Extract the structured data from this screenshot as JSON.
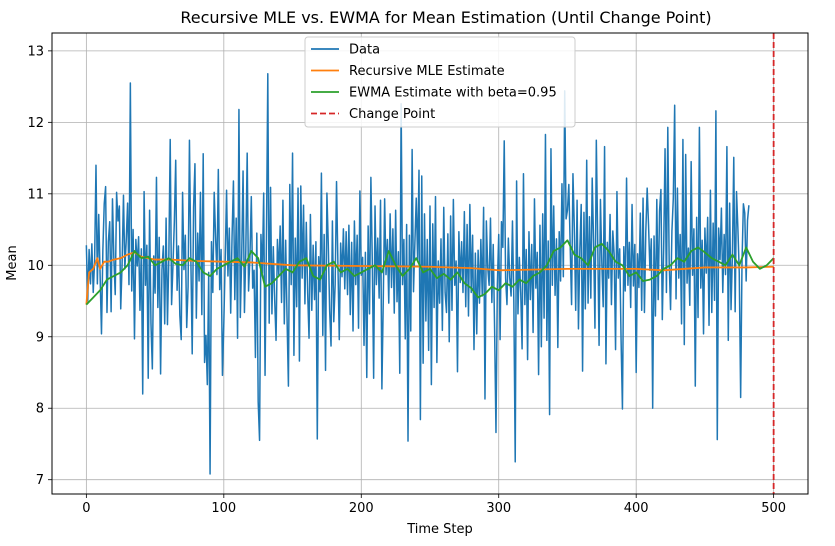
{
  "chart_data": {
    "type": "line",
    "title": "Recursive MLE vs. EWMA for Mean Estimation (Until Change Point)",
    "xlabel": "Time Step",
    "ylabel": "Mean",
    "xlim": [
      -25,
      525
    ],
    "ylim": [
      6.8,
      13.25
    ],
    "xticks": [
      0,
      100,
      200,
      300,
      400,
      500
    ],
    "yticks": [
      7,
      8,
      9,
      10,
      11,
      12,
      13
    ],
    "grid": true,
    "legend_position": "top-center",
    "colors": {
      "data": "#1f77b4",
      "mle": "#ff7f0e",
      "ewma": "#2ca02c",
      "change_point": "#d62728"
    },
    "legend": [
      {
        "key": "data",
        "label": "Data",
        "style": "solid"
      },
      {
        "key": "mle",
        "label": "Recursive MLE Estimate",
        "style": "solid"
      },
      {
        "key": "ewma",
        "label": "EWMA Estimate with beta=0.95",
        "style": "solid"
      },
      {
        "key": "change_point",
        "label": "Change Point",
        "style": "dashed"
      }
    ],
    "change_point_x": 500,
    "series": [
      {
        "key": "data",
        "name": "Data",
        "x_start": 0,
        "values": [
          10.28,
          9.5,
          10.22,
          9.74,
          10.3,
          9.62,
          10.06,
          11.4,
          9.74,
          10.71,
          9.86,
          9.04,
          10.21,
          10.86,
          11.1,
          9.34,
          10.33,
          10.61,
          9.35,
          10.93,
          10.1,
          9.59,
          11.02,
          10.62,
          10.83,
          9.39,
          10.02,
          10.98,
          9.95,
          10.35,
          10.87,
          9.73,
          12.55,
          9.64,
          10.5,
          8.97,
          10.36,
          9.99,
          10.4,
          9.37,
          10.23,
          8.2,
          11.03,
          9.72,
          10.28,
          8.42,
          10.77,
          9.19,
          8.55,
          10.13,
          9.61,
          11.23,
          9.41,
          10.39,
          8.48,
          9.94,
          10.27,
          9.18,
          10.66,
          9.17,
          10.12,
          11.76,
          9.45,
          10.0,
          10.6,
          11.47,
          9.65,
          10.27,
          9.3,
          8.96,
          11.02,
          9.94,
          10.42,
          9.13,
          9.7,
          11.75,
          10.12,
          8.76,
          10.81,
          11.42,
          9.26,
          10.45,
          9.78,
          11.02,
          9.31,
          11.56,
          8.64,
          9.02,
          8.33,
          9.9,
          7.08,
          10.33,
          9.62,
          11.02,
          10.4,
          9.87,
          11.34,
          9.66,
          10.22,
          8.46,
          9.19,
          10.07,
          11.05,
          9.85,
          10.52,
          9.33,
          10.41,
          11.18,
          9.52,
          10.66,
          8.98,
          12.18,
          9.27,
          10.12,
          11.32,
          9.34,
          10.21,
          11.57,
          9.64,
          10.11,
          10.96,
          9.68,
          9.93,
          8.71,
          10.45,
          8.09,
          7.55,
          10.43,
          9.89,
          11.01,
          8.46,
          10.35,
          12.68,
          9.19,
          11.09,
          9.32,
          10.26,
          9.52,
          8.95,
          10.36,
          9.87,
          10.55,
          9.48,
          10.91,
          9.18,
          10.35,
          9.26,
          8.31,
          11.13,
          9.73,
          11.57,
          8.74,
          10.38,
          9.42,
          11.08,
          8.66,
          11.11,
          9.82,
          10.84,
          9.46,
          10.6,
          9.61,
          8.98,
          10.71,
          9.37,
          10.28,
          9.52,
          10.33,
          7.57,
          10.12,
          9.63,
          11.29,
          9.02,
          10.43,
          8.53,
          11.01,
          10.29,
          9.36,
          8.87,
          10.62,
          9.21,
          9.73,
          11.17,
          10.02,
          8.96,
          10.31,
          9.84,
          10.51,
          9.67,
          10.47,
          9.59,
          10.56,
          9.31,
          10.32,
          9.08,
          10.62,
          9.73,
          10.42,
          9.12,
          11.04,
          9.86,
          10.11,
          8.88,
          10.18,
          8.43,
          10.55,
          9.32,
          11.23,
          10.08,
          8.42,
          10.83,
          9.73,
          10.38,
          9.54,
          10.91,
          8.27,
          9.51,
          10.93,
          9.87,
          10.36,
          9.47,
          10.72,
          9.69,
          10.51,
          9.33,
          10.77,
          9.49,
          10.19,
          8.49,
          12.26,
          9.73,
          10.36,
          8.97,
          10.57,
          7.54,
          10.42,
          9.08,
          11.62,
          9.63,
          10.31,
          10.94,
          10.07,
          11.33,
          7.84,
          11.25,
          8.63,
          10.72,
          9.22,
          10.36,
          8.81,
          10.83,
          8.33,
          10.58,
          9.41,
          10.96,
          8.64,
          10.06,
          9.47,
          10.37,
          9.09,
          10.81,
          9.62,
          9.34,
          10.44,
          8.93,
          10.69,
          9.37,
          10.92,
          9.72,
          10.06,
          8.51,
          10.47,
          9.76,
          10.33,
          9.62,
          10.75,
          9.42,
          10.57,
          9.29,
          10.85,
          9.62,
          10.42,
          8.82,
          10.17,
          9.04,
          10.21,
          9.47,
          10.36,
          9.57,
          10.81,
          8.13,
          10.62,
          9.97,
          9.72,
          10.66,
          9.48,
          10.29,
          9.11,
          7.66,
          9.73,
          10.43,
          8.96,
          10.61,
          10.25,
          11.74,
          9.82,
          9.45,
          10.38,
          9.83,
          9.57,
          10.62,
          9.48,
          7.25,
          11.18,
          9.32,
          10.11,
          9.62,
          8.83,
          11.28,
          9.45,
          10.22,
          8.68,
          10.47,
          9.52,
          10.29,
          9.06,
          10.93,
          9.68,
          10.18,
          8.47,
          10.56,
          8.86,
          10.72,
          9.26,
          11.83,
          8.95,
          10.34,
          7.91,
          11.63,
          9.72,
          10.83,
          9.58,
          10.37,
          8.85,
          10.47,
          9.78,
          11.14,
          9.84,
          12.44,
          10.65,
          10.77,
          11.13,
          10.26,
          9.45,
          11.28,
          10.52,
          9.37,
          10.91,
          9.11,
          10.21,
          10.85,
          8.52,
          10.74,
          9.39,
          11.47,
          9.47,
          10.68,
          9.54,
          11.22,
          10.33,
          9.12,
          11.75,
          10.36,
          8.88,
          10.92,
          10.04,
          9.42,
          11.66,
          8.62,
          10.32,
          9.82,
          10.71,
          9.45,
          10.48,
          10.14,
          8.82,
          11.03,
          9.82,
          10.23,
          8.97,
          7.99,
          10.26,
          9.64,
          11.22,
          9.72,
          10.32,
          9.41,
          10.85,
          9.71,
          10.29,
          8.5,
          10.16,
          9.69,
          10.73,
          9.37,
          10.94,
          9.34,
          10.47,
          11.08,
          10.56,
          9.93,
          10.37,
          8.0,
          10.41,
          9.29,
          10.92,
          9.52,
          10.76,
          11.06,
          9.24,
          10.24,
          11.63,
          9.62,
          11.93,
          10.05,
          9.38,
          10.48,
          10.93,
          12.24,
          9.53,
          11.08,
          9.82,
          10.43,
          9.18,
          11.76,
          8.89,
          11.55,
          9.75,
          10.24,
          9.44,
          11.45,
          9.86,
          10.51,
          8.31,
          10.67,
          9.27,
          11.93,
          9.68,
          10.35,
          9.04,
          10.52,
          9.89,
          10.67,
          9.16,
          11.05,
          9.34,
          10.59,
          9.51,
          12.16,
          7.56,
          10.52,
          10.08,
          10.8,
          9.62,
          10.43,
          9.87,
          11.66,
          8.95,
          10.87,
          9.38,
          10.14,
          11.51,
          9.35,
          11.03,
          10.51,
          9.89,
          8.15,
          10.06,
          10.86,
          10.73,
          9.78,
          10.63,
          10.84
        ]
      },
      {
        "key": "mle",
        "name": "Recursive MLE Estimate",
        "x": [
          0,
          2,
          5,
          8,
          10,
          13,
          16,
          20,
          25,
          30,
          35,
          40,
          50,
          60,
          70,
          80,
          100,
          120,
          150,
          200,
          250,
          280,
          300,
          350,
          400,
          420,
          450,
          480,
          500
        ],
        "values": [
          9.45,
          9.9,
          9.95,
          10.1,
          9.95,
          10.05,
          10.05,
          10.08,
          10.1,
          10.15,
          10.18,
          10.12,
          10.08,
          10.08,
          10.07,
          10.06,
          10.05,
          10.04,
          10.0,
          9.99,
          9.98,
          9.96,
          9.93,
          9.95,
          9.95,
          9.93,
          9.97,
          9.97,
          9.98
        ]
      },
      {
        "key": "ewma",
        "name": "EWMA Estimate with beta=0.95",
        "x": [
          0,
          5,
          10,
          15,
          20,
          25,
          30,
          35,
          40,
          45,
          50,
          55,
          60,
          65,
          70,
          75,
          80,
          85,
          90,
          95,
          100,
          105,
          110,
          115,
          120,
          125,
          130,
          135,
          140,
          145,
          150,
          155,
          160,
          165,
          170,
          175,
          180,
          185,
          190,
          195,
          200,
          205,
          210,
          215,
          220,
          225,
          230,
          235,
          240,
          245,
          250,
          255,
          260,
          265,
          270,
          275,
          280,
          285,
          290,
          295,
          300,
          305,
          310,
          315,
          320,
          325,
          330,
          335,
          340,
          345,
          350,
          355,
          360,
          365,
          370,
          375,
          380,
          385,
          390,
          395,
          400,
          405,
          410,
          415,
          420,
          425,
          430,
          435,
          440,
          445,
          450,
          455,
          460,
          465,
          470,
          475,
          480,
          485,
          490,
          495,
          500
        ],
        "values": [
          9.45,
          9.55,
          9.65,
          9.8,
          9.85,
          9.9,
          10.0,
          10.2,
          10.1,
          10.12,
          10.0,
          10.05,
          10.1,
          10.02,
          10.0,
          10.1,
          10.05,
          9.9,
          9.85,
          9.95,
          10.0,
          10.05,
          10.1,
          9.98,
          10.2,
          10.1,
          9.7,
          9.75,
          9.85,
          9.95,
          9.9,
          10.05,
          10.1,
          9.85,
          9.8,
          10.0,
          10.05,
          9.9,
          9.95,
          9.85,
          9.9,
          9.95,
          10.0,
          9.9,
          10.2,
          10.0,
          9.85,
          9.95,
          10.1,
          9.9,
          9.95,
          9.82,
          9.88,
          9.8,
          9.9,
          9.75,
          9.68,
          9.55,
          9.6,
          9.7,
          9.65,
          9.75,
          9.7,
          9.8,
          9.75,
          9.85,
          9.9,
          10.0,
          10.2,
          10.25,
          10.35,
          10.15,
          10.1,
          10.0,
          10.25,
          10.3,
          10.2,
          10.05,
          10.0,
          9.85,
          9.9,
          9.78,
          9.8,
          9.85,
          9.95,
          10.0,
          10.1,
          10.05,
          10.2,
          10.25,
          10.18,
          10.1,
          10.05,
          10.0,
          10.15,
          10.0,
          10.25,
          10.05,
          9.95,
          10.0,
          10.1
        ]
      }
    ]
  }
}
